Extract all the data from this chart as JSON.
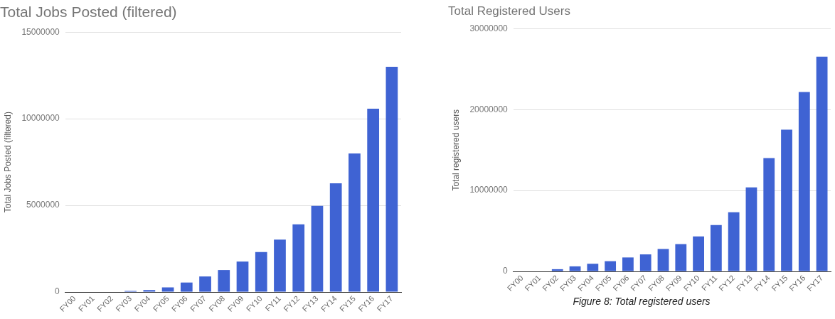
{
  "chart_data": [
    {
      "type": "bar",
      "title": "Total Jobs Posted (filtered)",
      "ylabel": "Total Jobs Posted (filtered)",
      "categories": [
        "FY00",
        "FY01",
        "FY02",
        "FY03",
        "FY04",
        "FY05",
        "FY06",
        "FY07",
        "FY08",
        "FY09",
        "FY10",
        "FY11",
        "FY12",
        "FY13",
        "FY14",
        "FY15",
        "FY16",
        "FY17"
      ],
      "series": [
        {
          "color": "#3f63d3",
          "values": [
            0,
            0,
            0,
            60000,
            120000,
            270000,
            550000,
            900000,
            1270000,
            1760000,
            2310000,
            3030000,
            3910000,
            4970000,
            6280000,
            8000000,
            10580000,
            13000000
          ]
        }
      ],
      "ylim": [
        0,
        15000000
      ],
      "yticks": [
        0,
        5000000,
        10000000,
        15000000
      ],
      "grid": "y",
      "legend": false
    },
    {
      "type": "bar",
      "title": "Total Registered Users",
      "ylabel": "Total registered users",
      "categories": [
        "FY00",
        "FY01",
        "FY02",
        "FY03",
        "FY04",
        "FY05",
        "FY06",
        "FY07",
        "FY08",
        "FY09",
        "FY10",
        "FY11",
        "FY12",
        "FY13",
        "FY14",
        "FY15",
        "FY16",
        "FY17"
      ],
      "series": [
        {
          "color": "#3f63d3",
          "values": [
            0,
            0,
            280000,
            630000,
            950000,
            1270000,
            1730000,
            2110000,
            2780000,
            3380000,
            4330000,
            5740000,
            7320000,
            10400000,
            14010000,
            17530000,
            22180000,
            26550000
          ]
        }
      ],
      "ylim": [
        0,
        30000000
      ],
      "yticks": [
        0,
        10000000,
        20000000,
        30000000
      ],
      "grid": "y",
      "legend": false,
      "annotations": [
        "Figure 8: Total registered users"
      ]
    }
  ]
}
